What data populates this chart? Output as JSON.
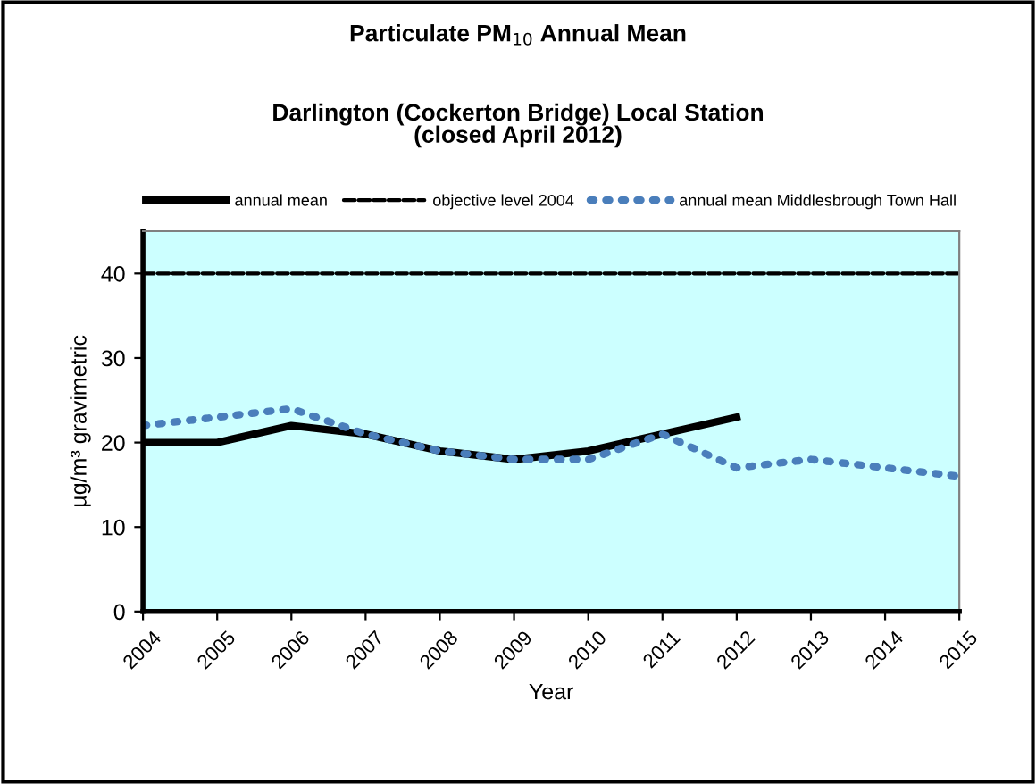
{
  "chart_data": {
    "type": "line",
    "title": "Particulate PM$_{10}$ Annual Mean",
    "subtitle": "Darlington (Cockerton Bridge) Local Station\n(closed April 2012)",
    "xlabel": "Year",
    "ylabel": "µg/m³ gravimetric",
    "x": [
      2004,
      2005,
      2006,
      2007,
      2008,
      2009,
      2010,
      2011,
      2012,
      2013,
      2014,
      2015
    ],
    "series": [
      {
        "name": "annual mean",
        "color": "#000000",
        "line_style": "solid",
        "values": [
          20,
          20,
          22,
          21,
          19,
          18,
          19,
          21,
          23,
          null,
          null,
          null
        ]
      },
      {
        "name": "objective level 2004",
        "color": "#000000",
        "line_style": "dashed",
        "values": [
          40,
          40,
          40,
          40,
          40,
          40,
          40,
          40,
          40,
          40,
          40,
          40
        ]
      },
      {
        "name": "annual mean Middlesbrough Town Hall",
        "color": "#4a7ebb",
        "line_style": "dotted",
        "values": [
          22,
          23,
          24,
          21,
          19,
          18,
          18,
          21,
          17,
          18,
          17,
          16
        ]
      }
    ],
    "xlim": [
      2004,
      2015
    ],
    "xticks": [
      2004,
      2005,
      2006,
      2007,
      2008,
      2009,
      2010,
      2011,
      2012,
      2013,
      2014,
      2015
    ],
    "ylim": [
      0,
      45
    ],
    "yticks": [
      0,
      10,
      20,
      30,
      40
    ],
    "grid": false,
    "legend": "top",
    "marker": "none"
  }
}
